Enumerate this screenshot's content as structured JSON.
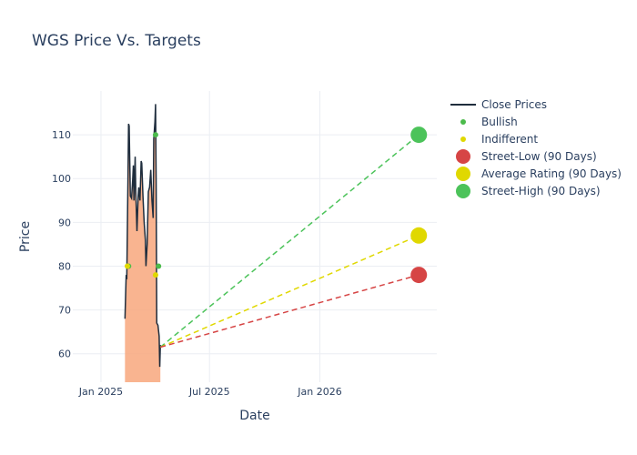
{
  "chart_data": {
    "type": "line",
    "title": "WGS Price Vs. Targets",
    "xlabel": "Date",
    "ylabel": "Price",
    "x_ticks": [
      {
        "label": "Jan 2025",
        "date": "2025-01-01"
      },
      {
        "label": "Jul 2025",
        "date": "2025-07-01"
      },
      {
        "label": "Jan 2026",
        "date": "2026-01-01"
      }
    ],
    "y_ticks": [
      60,
      70,
      80,
      90,
      100,
      110
    ],
    "xlim": [
      "2024-11-15",
      "2026-07-15"
    ],
    "ylim": [
      53.5,
      120
    ],
    "grid": true,
    "legend_position": "right",
    "colors": {
      "close": "#1f2d3d",
      "fill": "#f8a77d",
      "bullish": "#4cbb4c",
      "indifferent": "#e0d800",
      "street_low": "#d64545",
      "street_high": "#4cc35a"
    },
    "legend": [
      {
        "name": "Close Prices",
        "symbol": "line",
        "color": "#1f2d3d"
      },
      {
        "name": "Bullish",
        "symbol": "dot-small",
        "color": "#4cbb4c"
      },
      {
        "name": "Indifferent",
        "symbol": "dot-small",
        "color": "#e0d800"
      },
      {
        "name": "Street-Low (90 Days)",
        "symbol": "dot-large",
        "color": "#d64545"
      },
      {
        "name": "Average Rating (90 Days)",
        "symbol": "dot-large",
        "color": "#e0d800"
      },
      {
        "name": "Street-High (90 Days)",
        "symbol": "dot-large",
        "color": "#4cc35a"
      }
    ],
    "close_prices": [
      [
        "2025-02-10",
        68
      ],
      [
        "2025-02-12",
        78
      ],
      [
        "2025-02-13",
        77
      ],
      [
        "2025-02-15",
        100
      ],
      [
        "2025-02-16",
        112.5
      ],
      [
        "2025-02-17",
        112
      ],
      [
        "2025-02-18",
        104
      ],
      [
        "2025-02-19",
        96
      ],
      [
        "2025-02-21",
        95.5
      ],
      [
        "2025-02-23",
        100
      ],
      [
        "2025-02-24",
        103
      ],
      [
        "2025-02-25",
        95
      ],
      [
        "2025-02-27",
        105
      ],
      [
        "2025-02-28",
        97
      ],
      [
        "2025-03-02",
        88
      ],
      [
        "2025-03-03",
        92
      ],
      [
        "2025-03-04",
        96
      ],
      [
        "2025-03-05",
        98
      ],
      [
        "2025-03-07",
        95
      ],
      [
        "2025-03-09",
        104
      ],
      [
        "2025-03-10",
        103.5
      ],
      [
        "2025-03-12",
        96
      ],
      [
        "2025-03-14",
        90
      ],
      [
        "2025-03-16",
        86
      ],
      [
        "2025-03-17",
        80
      ],
      [
        "2025-03-19",
        85
      ],
      [
        "2025-03-21",
        97
      ],
      [
        "2025-03-23",
        98
      ],
      [
        "2025-03-25",
        102
      ],
      [
        "2025-03-27",
        95
      ],
      [
        "2025-03-29",
        91
      ],
      [
        "2025-03-30",
        109
      ],
      [
        "2025-03-31",
        111
      ],
      [
        "2025-04-01",
        113
      ],
      [
        "2025-04-02",
        117
      ],
      [
        "2025-04-03",
        99
      ],
      [
        "2025-04-04",
        67
      ],
      [
        "2025-04-06",
        66.5
      ],
      [
        "2025-04-08",
        64
      ],
      [
        "2025-04-09",
        57
      ],
      [
        "2025-04-10",
        62
      ]
    ],
    "bullish_points": [
      [
        "2025-02-16",
        80
      ],
      [
        "2025-04-02",
        110
      ],
      [
        "2025-04-07",
        80
      ]
    ],
    "indifferent_points": [
      [
        "2025-02-14",
        80
      ],
      [
        "2025-04-02",
        78
      ]
    ],
    "target_start": [
      "2025-04-10",
      61.5
    ],
    "target_date": "2026-06-15",
    "street_low": 78,
    "average_rating": 87,
    "street_high": 110
  }
}
